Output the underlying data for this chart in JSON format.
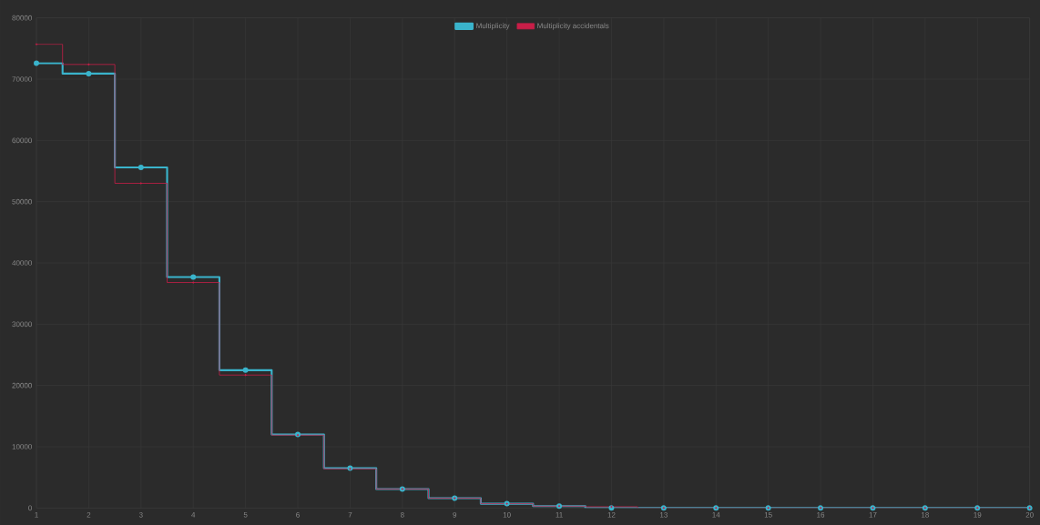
{
  "chart_data": {
    "type": "step",
    "x": [
      1,
      2,
      3,
      4,
      5,
      6,
      7,
      8,
      9,
      10,
      11,
      12,
      13,
      14,
      15,
      16,
      17,
      18,
      19,
      20
    ],
    "series": [
      {
        "name": "Multiplicity",
        "color": "#3ab4cc",
        "values": [
          72600,
          70900,
          55600,
          37700,
          22500,
          12000,
          6500,
          3100,
          1600,
          700,
          300,
          0,
          0,
          0,
          0,
          0,
          0,
          0,
          0,
          0
        ]
      },
      {
        "name": "Multiplicity accidentals",
        "color": "#c81e48",
        "values": [
          75700,
          72400,
          53000,
          36800,
          21700,
          11900,
          6400,
          3100,
          1600,
          700,
          300,
          200,
          0,
          0,
          0,
          0,
          0,
          0,
          0,
          0
        ]
      }
    ],
    "xlim": [
      1,
      20
    ],
    "xticks": [
      1,
      2,
      3,
      4,
      5,
      6,
      7,
      8,
      9,
      10,
      11,
      12,
      13,
      14,
      15,
      16,
      17,
      18,
      19,
      20
    ],
    "ylim": [
      0,
      80000
    ],
    "yticks": [
      0,
      10000,
      20000,
      30000,
      40000,
      50000,
      60000,
      70000,
      80000
    ],
    "grid": true,
    "legend": "top",
    "marker": "circle",
    "line_style": "solid"
  }
}
